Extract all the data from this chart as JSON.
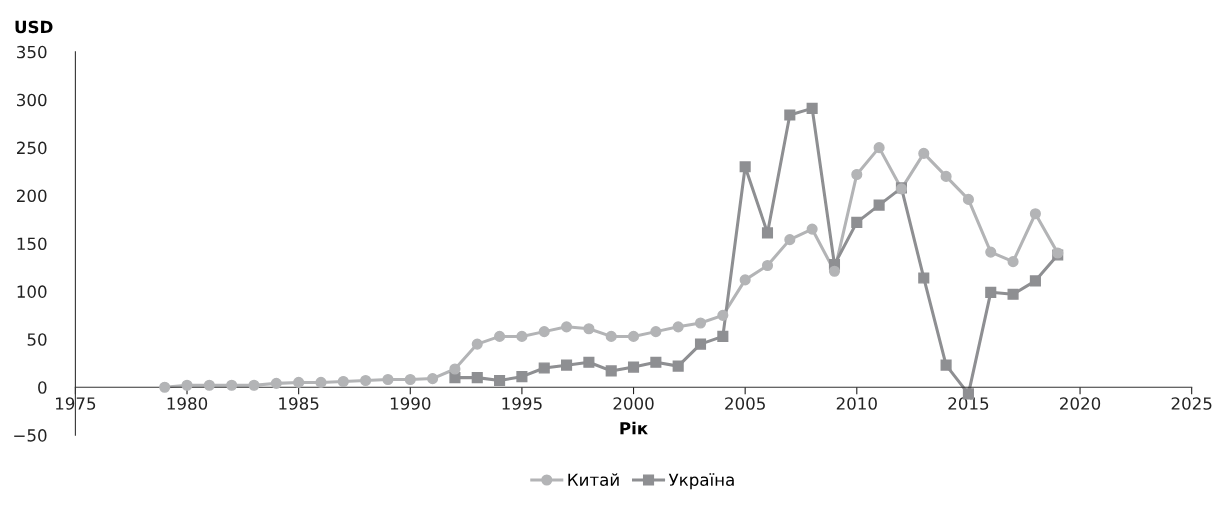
{
  "chart_data": {
    "type": "line",
    "xlabel": "Рік",
    "ylabel": "USD",
    "x": [
      1979,
      1980,
      1981,
      1982,
      1983,
      1984,
      1985,
      1986,
      1987,
      1988,
      1989,
      1990,
      1991,
      1992,
      1993,
      1994,
      1995,
      1996,
      1997,
      1998,
      1999,
      2000,
      2001,
      2002,
      2003,
      2004,
      2005,
      2006,
      2007,
      2008,
      2009,
      2010,
      2011,
      2012,
      2013,
      2014,
      2015,
      2016,
      2017,
      2018,
      2019
    ],
    "series": [
      {
        "name": "Китай",
        "color": "#b3b4b6",
        "marker": "circle",
        "values": [
          0,
          2,
          2,
          2,
          2,
          4,
          5,
          5,
          6,
          7,
          8,
          8,
          9,
          19,
          45,
          53,
          53,
          58,
          63,
          61,
          53,
          53,
          58,
          63,
          67,
          75,
          112,
          127,
          154,
          165,
          121,
          222,
          250,
          207,
          244,
          220,
          196,
          141,
          131,
          181,
          140
        ]
      },
      {
        "name": "Україна",
        "color": "#8e8f92",
        "marker": "square",
        "values": [
          null,
          null,
          null,
          null,
          null,
          null,
          null,
          null,
          null,
          null,
          null,
          null,
          null,
          10,
          10,
          7,
          11,
          20,
          23,
          26,
          17,
          21,
          26,
          22,
          45,
          53,
          230,
          161,
          284,
          291,
          128,
          172,
          190,
          208,
          114,
          23,
          -7,
          99,
          97,
          111,
          138
        ]
      }
    ],
    "xlim": [
      1975,
      2025
    ],
    "xticks": [
      1975,
      1980,
      1985,
      1990,
      1995,
      2000,
      2005,
      2010,
      2015,
      2020,
      2025
    ],
    "ylim": [
      -50,
      350
    ],
    "yticks": [
      {
        "value": -50,
        "label": "−50"
      },
      0,
      50,
      100,
      150,
      200,
      250,
      300,
      350
    ],
    "grid": false,
    "legend": "bottom",
    "line_style": "solid"
  }
}
